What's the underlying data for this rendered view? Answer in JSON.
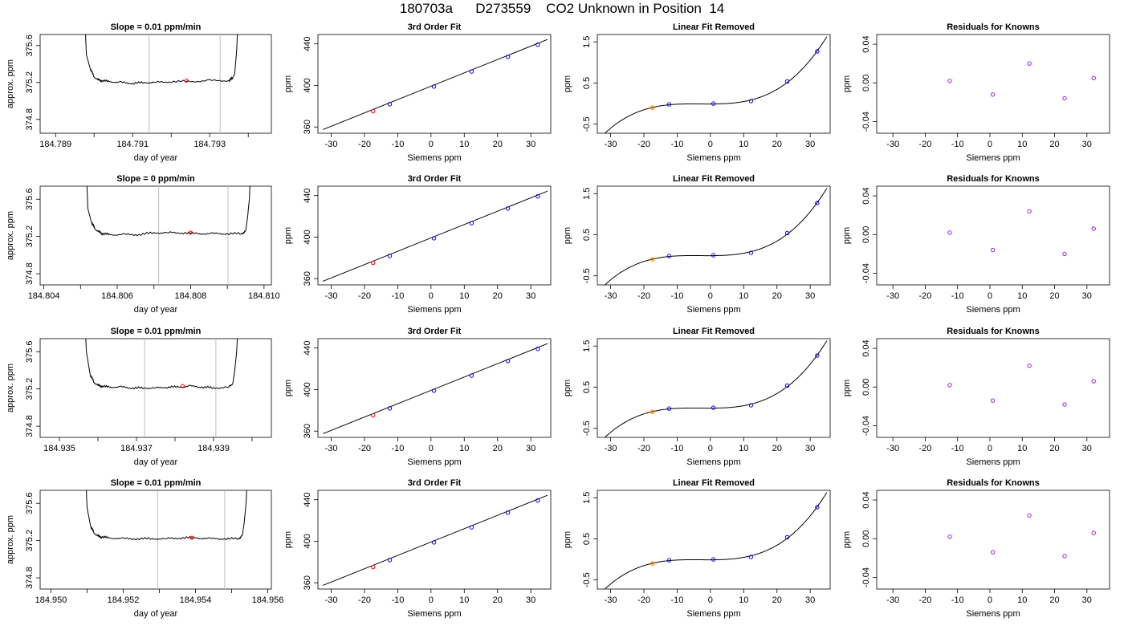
{
  "title": "180703a      D273559    CO2 Unknown in Position  14",
  "colors": {
    "trace": "#000000",
    "fit_line": "#000000",
    "window_line": "#bebebe",
    "known_point": "#0000ff",
    "unknown_point": "#ff0000",
    "removed_unknown_point": "#ff8c00",
    "residual_point": "#a020f0"
  },
  "chart_data": [
    {
      "panel": "r1-time",
      "type": "line",
      "title": "Slope =  0.01  ppm/min",
      "xlabel": "day of year",
      "ylabel": "approx. ppm",
      "xlim": [
        184.7886,
        184.7946
      ],
      "ylim": [
        374.65,
        375.72
      ],
      "xticks": [
        184.789,
        184.791,
        184.793
      ],
      "xtick_labels": [
        "184.789",
        "184.791",
        "184.793"
      ],
      "yticks": [
        374.8,
        375.2,
        375.6
      ],
      "ytick_labels": [
        "374.8",
        "375.2",
        "375.6"
      ],
      "x": [
        184.7897,
        184.7898,
        184.7899,
        184.79,
        184.7901,
        184.7902,
        184.7904,
        184.7907,
        184.791,
        184.7913,
        184.7916,
        184.792,
        184.7925,
        184.793,
        184.7935,
        184.7936,
        184.79365,
        184.7937,
        184.7938
      ],
      "y": [
        376.5,
        375.5,
        375.35,
        375.26,
        375.23,
        375.22,
        375.21,
        375.2,
        375.19,
        375.2,
        375.2,
        375.21,
        375.21,
        375.22,
        375.22,
        375.25,
        375.3,
        375.55,
        376.5
      ],
      "window": [
        184.79143,
        184.79327
      ],
      "marker": {
        "x": 184.7924,
        "y": 375.22
      }
    },
    {
      "panel": "r1-fit",
      "type": "scatter",
      "title": "3rd Order Fit",
      "xlabel": "Siemens ppm",
      "ylabel": "ppm",
      "xlim": [
        -34,
        36
      ],
      "ylim": [
        354,
        449
      ],
      "xticks": [
        -30,
        -20,
        -10,
        0,
        10,
        20,
        30
      ],
      "xtick_labels": [
        "-30",
        "-20",
        "-10",
        "0",
        "10",
        "20",
        "30"
      ],
      "yticks": [
        360,
        400,
        440
      ],
      "ytick_labels": [
        "360",
        "400",
        "440"
      ],
      "knowns": {
        "x": [
          -12.4,
          0.9,
          12.2,
          23.1,
          32.1
        ],
        "y": [
          381.9,
          398.9,
          413.4,
          427.5,
          439.2
        ]
      },
      "unknown": {
        "x": -17.4,
        "y": 375.2
      },
      "curve": {
        "x0": -32.5,
        "x1": 35,
        "y0": 357.5,
        "y1": 444.2
      }
    },
    {
      "panel": "r1-removed",
      "type": "scatter",
      "title": "Linear Fit Removed",
      "xlabel": "Siemens ppm",
      "ylabel": "ppm",
      "xlim": [
        -34,
        36
      ],
      "ylim": [
        -0.72,
        1.68
      ],
      "xticks": [
        -30,
        -20,
        -10,
        0,
        10,
        20,
        30
      ],
      "xtick_labels": [
        "-30",
        "-20",
        "-10",
        "0",
        "10",
        "20",
        "30"
      ],
      "yticks": [
        -0.5,
        0.5,
        1.5
      ],
      "ytick_labels": [
        "-0.5",
        "0.5",
        "1.5"
      ],
      "knowns": {
        "x": [
          -12.4,
          0.9,
          12.2,
          23.1,
          32.1
        ],
        "y": [
          -0.02,
          0.0,
          0.06,
          0.54,
          1.27
        ]
      },
      "unknown": {
        "x": -17.4,
        "y": -0.1
      },
      "curve": {
        "x_start": -32,
        "x_end": 35
      }
    },
    {
      "panel": "r1-residuals",
      "type": "scatter",
      "title": "Residuals for Knowns",
      "xlabel": "Siemens ppm",
      "ylabel": "ppm",
      "xlim": [
        -35,
        37
      ],
      "ylim": [
        -0.052,
        0.05
      ],
      "xticks": [
        -30,
        -20,
        -10,
        0,
        10,
        20,
        30
      ],
      "xtick_labels": [
        "-30",
        "-20",
        "-10",
        "0",
        "10",
        "20",
        "30"
      ],
      "yticks": [
        -0.04,
        0.0,
        0.04
      ],
      "ytick_labels": [
        "-0.04",
        "0.00",
        "0.04"
      ],
      "points": {
        "x": [
          -12.4,
          0.9,
          12.2,
          23.1,
          32.1
        ],
        "y": [
          0.002,
          -0.012,
          0.02,
          -0.016,
          0.005
        ]
      }
    },
    {
      "panel": "r2-time",
      "type": "line",
      "title": "Slope =  0  ppm/min",
      "xlabel": "day of year",
      "ylabel": "approx. ppm",
      "xlim": [
        184.8039,
        184.8102
      ],
      "ylim": [
        374.68,
        375.74
      ],
      "xticks": [
        184.804,
        184.806,
        184.808,
        184.81
      ],
      "xtick_labels": [
        "184.804",
        "184.806",
        "184.808",
        "184.810"
      ],
      "yticks": [
        374.8,
        375.2,
        375.6
      ],
      "ytick_labels": [
        "374.8",
        "375.2",
        "375.6"
      ],
      "x": [
        184.8051,
        184.8052,
        184.8053,
        184.8054,
        184.8055,
        184.8056,
        184.8058,
        184.8062,
        184.8066,
        184.807,
        184.8074,
        184.8078,
        184.8082,
        184.8086,
        184.809,
        184.8094,
        184.8095,
        184.80955,
        184.8096,
        184.8097
      ],
      "y": [
        376.5,
        375.5,
        375.35,
        375.28,
        375.25,
        375.23,
        375.22,
        375.22,
        375.22,
        375.24,
        375.24,
        375.24,
        375.23,
        375.23,
        375.23,
        375.23,
        375.26,
        375.4,
        375.6,
        376.5
      ],
      "window": [
        184.80713,
        184.80902
      ],
      "marker": {
        "x": 184.808,
        "y": 375.24
      }
    },
    {
      "panel": "r2-fit",
      "type": "scatter",
      "title": "3rd Order Fit",
      "xlabel": "Siemens ppm",
      "ylabel": "ppm",
      "xlim": [
        -34,
        36
      ],
      "ylim": [
        354,
        449
      ],
      "xticks": [
        -30,
        -20,
        -10,
        0,
        10,
        20,
        30
      ],
      "xtick_labels": [
        "-30",
        "-20",
        "-10",
        "0",
        "10",
        "20",
        "30"
      ],
      "yticks": [
        360,
        400,
        440
      ],
      "ytick_labels": [
        "360",
        "400",
        "440"
      ],
      "knowns": {
        "x": [
          -12.4,
          0.9,
          12.2,
          23.1,
          32.1
        ],
        "y": [
          381.9,
          398.9,
          413.4,
          427.5,
          439.2
        ]
      },
      "unknown": {
        "x": -17.4,
        "y": 375.2
      },
      "curve": {
        "x0": -32.5,
        "x1": 35,
        "y0": 357.5,
        "y1": 444.2
      }
    },
    {
      "panel": "r2-removed",
      "type": "scatter",
      "title": "Linear Fit Removed",
      "xlabel": "Siemens ppm",
      "ylabel": "ppm",
      "xlim": [
        -34,
        36
      ],
      "ylim": [
        -0.72,
        1.68
      ],
      "xticks": [
        -30,
        -20,
        -10,
        0,
        10,
        20,
        30
      ],
      "xtick_labels": [
        "-30",
        "-20",
        "-10",
        "0",
        "10",
        "20",
        "30"
      ],
      "yticks": [
        -0.5,
        0.5,
        1.5
      ],
      "ytick_labels": [
        "-0.5",
        "0.5",
        "1.5"
      ],
      "knowns": {
        "x": [
          -12.4,
          0.9,
          12.2,
          23.1,
          32.1
        ],
        "y": [
          -0.02,
          0.0,
          0.06,
          0.54,
          1.27
        ]
      },
      "unknown": {
        "x": -17.4,
        "y": -0.1
      },
      "curve": {
        "x_start": -32,
        "x_end": 35
      }
    },
    {
      "panel": "r2-residuals",
      "type": "scatter",
      "title": "Residuals for Knowns",
      "xlabel": "Siemens ppm",
      "ylabel": "ppm",
      "xlim": [
        -35,
        37
      ],
      "ylim": [
        -0.052,
        0.05
      ],
      "xticks": [
        -30,
        -20,
        -10,
        0,
        10,
        20,
        30
      ],
      "xtick_labels": [
        "-30",
        "-20",
        "-10",
        "0",
        "10",
        "20",
        "30"
      ],
      "yticks": [
        -0.04,
        0.0,
        0.04
      ],
      "ytick_labels": [
        "-0.04",
        "0.00",
        "0.04"
      ],
      "points": {
        "x": [
          -12.4,
          0.9,
          12.2,
          23.1,
          32.1
        ],
        "y": [
          0.002,
          -0.016,
          0.024,
          -0.02,
          0.006
        ]
      }
    },
    {
      "panel": "r3-time",
      "type": "line",
      "title": "Slope =  0.01  ppm/min",
      "xlabel": "day of year",
      "ylabel": "approx. ppm",
      "xlim": [
        184.9345,
        184.9405
      ],
      "ylim": [
        374.68,
        375.74
      ],
      "xticks": [
        184.935,
        184.937,
        184.939
      ],
      "xtick_labels": [
        "184.935",
        "184.937",
        "184.939"
      ],
      "yticks": [
        374.8,
        375.2,
        375.6
      ],
      "ytick_labels": [
        "374.8",
        "375.2",
        "375.6"
      ],
      "x": [
        184.9356,
        184.9357,
        184.9358,
        184.9359,
        184.936,
        184.9361,
        184.9363,
        184.9366,
        184.9369,
        184.9372,
        184.9375,
        184.9378,
        184.9381,
        184.9384,
        184.9387,
        184.939,
        184.9394,
        184.9395,
        184.93955,
        184.9396,
        184.9397
      ],
      "y": [
        376.5,
        375.6,
        375.35,
        375.27,
        375.24,
        375.23,
        375.22,
        375.22,
        375.21,
        375.21,
        375.21,
        375.22,
        375.22,
        375.23,
        375.22,
        375.21,
        375.22,
        375.26,
        375.4,
        375.6,
        376.5
      ],
      "window": [
        184.93721,
        184.93906
      ],
      "marker": {
        "x": 184.9382,
        "y": 375.23
      }
    },
    {
      "panel": "r3-fit",
      "type": "scatter",
      "title": "3rd Order Fit",
      "xlabel": "Siemens ppm",
      "ylabel": "ppm",
      "xlim": [
        -34,
        36
      ],
      "ylim": [
        354,
        449
      ],
      "xticks": [
        -30,
        -20,
        -10,
        0,
        10,
        20,
        30
      ],
      "xtick_labels": [
        "-30",
        "-20",
        "-10",
        "0",
        "10",
        "20",
        "30"
      ],
      "yticks": [
        360,
        400,
        440
      ],
      "ytick_labels": [
        "360",
        "400",
        "440"
      ],
      "knowns": {
        "x": [
          -12.4,
          0.9,
          12.2,
          23.1,
          32.1
        ],
        "y": [
          381.9,
          398.9,
          413.4,
          427.5,
          439.2
        ]
      },
      "unknown": {
        "x": -17.4,
        "y": 375.2
      },
      "curve": {
        "x0": -32.5,
        "x1": 35,
        "y0": 357.5,
        "y1": 444.2
      }
    },
    {
      "panel": "r3-removed",
      "type": "scatter",
      "title": "Linear Fit Removed",
      "xlabel": "Siemens ppm",
      "ylabel": "ppm",
      "xlim": [
        -34,
        36
      ],
      "ylim": [
        -0.72,
        1.68
      ],
      "xticks": [
        -30,
        -20,
        -10,
        0,
        10,
        20,
        30
      ],
      "xtick_labels": [
        "-30",
        "-20",
        "-10",
        "0",
        "10",
        "20",
        "30"
      ],
      "yticks": [
        -0.5,
        0.5,
        1.5
      ],
      "ytick_labels": [
        "-0.5",
        "0.5",
        "1.5"
      ],
      "knowns": {
        "x": [
          -12.4,
          0.9,
          12.2,
          23.1,
          32.1
        ],
        "y": [
          -0.02,
          0.0,
          0.06,
          0.54,
          1.27
        ]
      },
      "unknown": {
        "x": -17.4,
        "y": -0.1
      },
      "curve": {
        "x_start": -32,
        "x_end": 35
      }
    },
    {
      "panel": "r3-residuals",
      "type": "scatter",
      "title": "Residuals for Knowns",
      "xlabel": "Siemens ppm",
      "ylabel": "ppm",
      "xlim": [
        -35,
        37
      ],
      "ylim": [
        -0.052,
        0.05
      ],
      "xticks": [
        -30,
        -20,
        -10,
        0,
        10,
        20,
        30
      ],
      "xtick_labels": [
        "-30",
        "-20",
        "-10",
        "0",
        "10",
        "20",
        "30"
      ],
      "yticks": [
        -0.04,
        0.0,
        0.04
      ],
      "ytick_labels": [
        "-0.04",
        "0.00",
        "0.04"
      ],
      "points": {
        "x": [
          -12.4,
          0.9,
          12.2,
          23.1,
          32.1
        ],
        "y": [
          0.002,
          -0.014,
          0.022,
          -0.018,
          0.006
        ]
      }
    },
    {
      "panel": "r4-time",
      "type": "line",
      "title": "Slope =  0.01  ppm/min",
      "xlabel": "day of year",
      "ylabel": "approx. ppm",
      "xlim": [
        184.9497,
        184.9561
      ],
      "ylim": [
        374.68,
        375.74
      ],
      "xticks": [
        184.95,
        184.952,
        184.954,
        184.956
      ],
      "xtick_labels": [
        "184.950",
        "184.952",
        "184.954",
        "184.956"
      ],
      "yticks": [
        374.8,
        375.2,
        375.6
      ],
      "ytick_labels": [
        "374.8",
        "375.2",
        "375.6"
      ],
      "x": [
        184.9509,
        184.951,
        184.9511,
        184.9512,
        184.9513,
        184.9514,
        184.9516,
        184.952,
        184.9524,
        184.9528,
        184.9532,
        184.9536,
        184.954,
        184.9544,
        184.9548,
        184.9552,
        184.9553,
        184.95535,
        184.9554,
        184.9555
      ],
      "y": [
        376.5,
        375.55,
        375.35,
        375.28,
        375.25,
        375.24,
        375.23,
        375.22,
        375.22,
        375.22,
        375.22,
        375.23,
        375.23,
        375.22,
        375.22,
        375.22,
        375.26,
        375.4,
        375.6,
        376.5
      ],
      "window": [
        184.95295,
        184.95481
      ],
      "marker": {
        "x": 184.9539,
        "y": 375.23
      }
    },
    {
      "panel": "r4-fit",
      "type": "scatter",
      "title": "3rd Order Fit",
      "xlabel": "Siemens ppm",
      "ylabel": "ppm",
      "xlim": [
        -34,
        36
      ],
      "ylim": [
        354,
        449
      ],
      "xticks": [
        -30,
        -20,
        -10,
        0,
        10,
        20,
        30
      ],
      "xtick_labels": [
        "-30",
        "-20",
        "-10",
        "0",
        "10",
        "20",
        "30"
      ],
      "yticks": [
        360,
        400,
        440
      ],
      "ytick_labels": [
        "360",
        "400",
        "440"
      ],
      "knowns": {
        "x": [
          -12.4,
          0.9,
          12.2,
          23.1,
          32.1
        ],
        "y": [
          381.9,
          398.9,
          413.4,
          427.5,
          439.2
        ]
      },
      "unknown": {
        "x": -17.4,
        "y": 375.2
      },
      "curve": {
        "x0": -32.5,
        "x1": 35,
        "y0": 357.5,
        "y1": 444.2
      }
    },
    {
      "panel": "r4-removed",
      "type": "scatter",
      "title": "Linear Fit Removed",
      "xlabel": "Siemens ppm",
      "ylabel": "ppm",
      "xlim": [
        -34,
        36
      ],
      "ylim": [
        -0.72,
        1.68
      ],
      "xticks": [
        -30,
        -20,
        -10,
        0,
        10,
        20,
        30
      ],
      "xtick_labels": [
        "-30",
        "-20",
        "-10",
        "0",
        "10",
        "20",
        "30"
      ],
      "yticks": [
        -0.5,
        0.5,
        1.5
      ],
      "ytick_labels": [
        "-0.5",
        "0.5",
        "1.5"
      ],
      "knowns": {
        "x": [
          -12.4,
          0.9,
          12.2,
          23.1,
          32.1
        ],
        "y": [
          -0.02,
          0.0,
          0.06,
          0.54,
          1.27
        ]
      },
      "unknown": {
        "x": -17.4,
        "y": -0.1
      },
      "curve": {
        "x_start": -32,
        "x_end": 35
      }
    },
    {
      "panel": "r4-residuals",
      "type": "scatter",
      "title": "Residuals for Knowns",
      "xlabel": "Siemens ppm",
      "ylabel": "ppm",
      "xlim": [
        -35,
        37
      ],
      "ylim": [
        -0.052,
        0.05
      ],
      "xticks": [
        -30,
        -20,
        -10,
        0,
        10,
        20,
        30
      ],
      "xtick_labels": [
        "-30",
        "-20",
        "-10",
        "0",
        "10",
        "20",
        "30"
      ],
      "points": {
        "x": [
          -12.4,
          0.9,
          12.2,
          23.1,
          32.1
        ],
        "y": [
          0.002,
          -0.014,
          0.024,
          -0.018,
          0.006
        ]
      },
      "yticks": [
        -0.04,
        0.0,
        0.04
      ],
      "ytick_labels": [
        "-0.04",
        "0.00",
        "0.04"
      ]
    }
  ]
}
